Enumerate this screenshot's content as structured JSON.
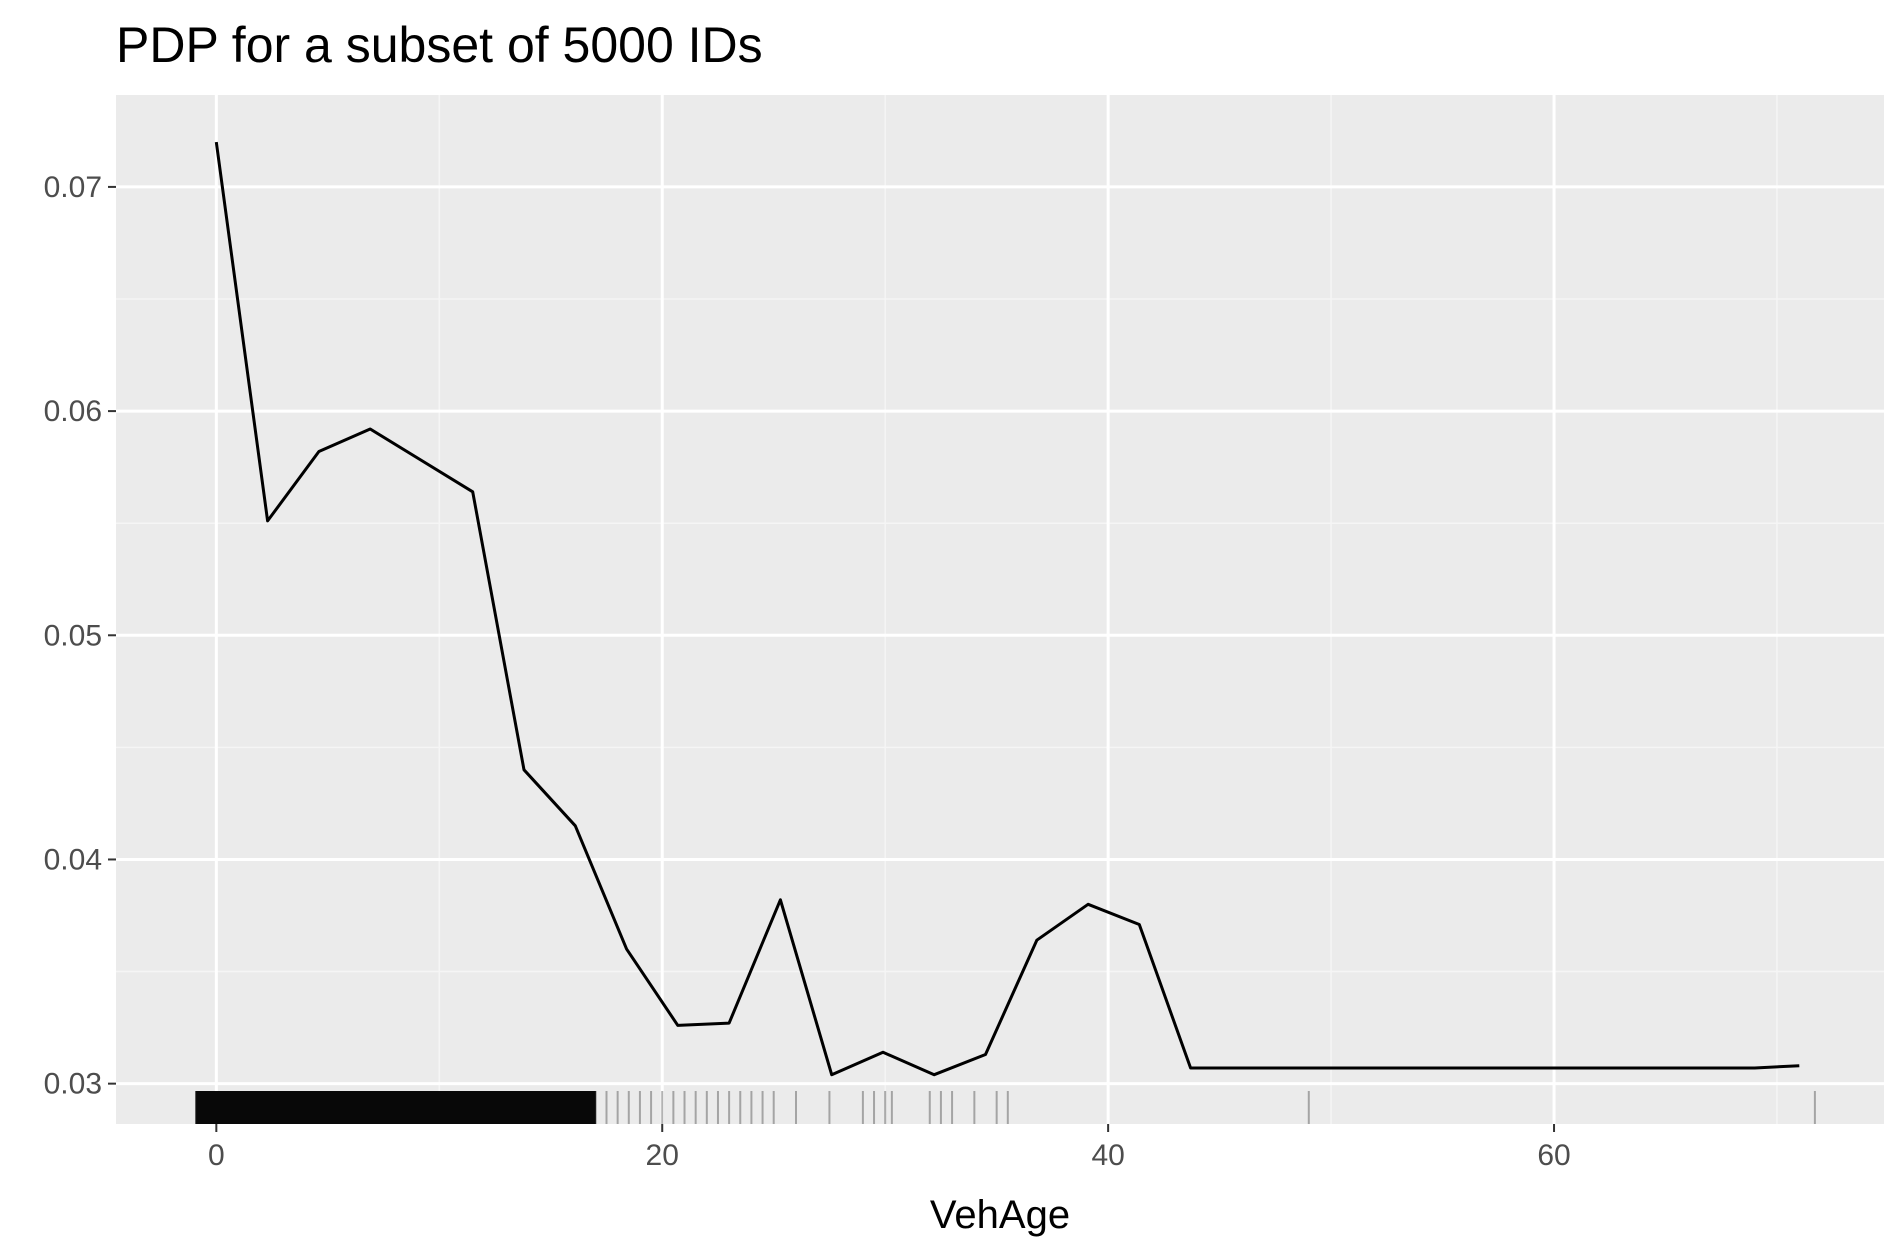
{
  "chart_data": {
    "type": "line",
    "title": "PDP for a subset of 5000 IDs",
    "xlabel": "VehAge",
    "ylabel": "",
    "xlim": [
      -4.5,
      74.8
    ],
    "ylim": [
      0.0282,
      0.0741
    ],
    "x_ticks": [
      0,
      20,
      40,
      60
    ],
    "x_tick_labels": [
      "0",
      "20",
      "40",
      "60"
    ],
    "y_ticks": [
      0.03,
      0.04,
      0.05,
      0.06,
      0.07
    ],
    "y_tick_labels": [
      "0.03",
      "0.04",
      "0.05",
      "0.06",
      "0.07"
    ],
    "grid": true,
    "legend": "none",
    "series": [
      {
        "x": [
          0,
          2.3,
          4.6,
          6.9,
          9.2,
          11.5,
          13.8,
          16.1,
          18.4,
          20.7,
          23.0,
          25.3,
          27.6,
          29.9,
          32.2,
          34.5,
          36.8,
          39.1,
          41.4,
          43.7,
          46.0,
          48.3,
          50.6,
          52.9,
          55.2,
          57.5,
          59.8,
          62.1,
          64.4,
          66.7,
          69.0,
          71.0
        ],
        "values": [
          0.072,
          0.0551,
          0.0582,
          0.0592,
          0.0578,
          0.0564,
          0.044,
          0.0415,
          0.036,
          0.0326,
          0.0327,
          0.0382,
          0.0304,
          0.0314,
          0.0304,
          0.0313,
          0.0364,
          0.038,
          0.0371,
          0.0307,
          0.0307,
          0.0307,
          0.0307,
          0.0307,
          0.0307,
          0.0307,
          0.0307,
          0.0307,
          0.0307,
          0.0307,
          0.0307,
          0.0308
        ]
      }
    ],
    "rug_x": [
      0,
      0.5,
      1,
      1.5,
      2,
      2.5,
      3,
      3.5,
      4,
      4.5,
      5,
      5.5,
      6,
      6.5,
      7,
      7.5,
      8,
      8.5,
      9,
      9.5,
      10,
      10.5,
      11,
      11.5,
      12,
      12.5,
      13,
      13.5,
      14,
      14.5,
      15,
      15.5,
      16,
      16.5,
      17,
      17.5,
      18,
      18.5,
      19,
      19.5,
      20,
      20.5,
      21,
      21.5,
      22,
      22.5,
      23,
      23.5,
      24,
      24.5,
      25,
      26,
      27.5,
      29,
      29.5,
      30,
      30.3,
      32,
      32.5,
      33,
      34,
      35,
      35.5,
      49,
      71.7
    ]
  },
  "colors": {
    "panel_background": "#ebebeb",
    "major_grid": "#ffffff",
    "minor_grid": "#f5f5f5",
    "line": "#000000",
    "rug": "#000000",
    "tick_label": "#4d4d4d",
    "tick_mark": "#333333",
    "title": "#000000"
  }
}
